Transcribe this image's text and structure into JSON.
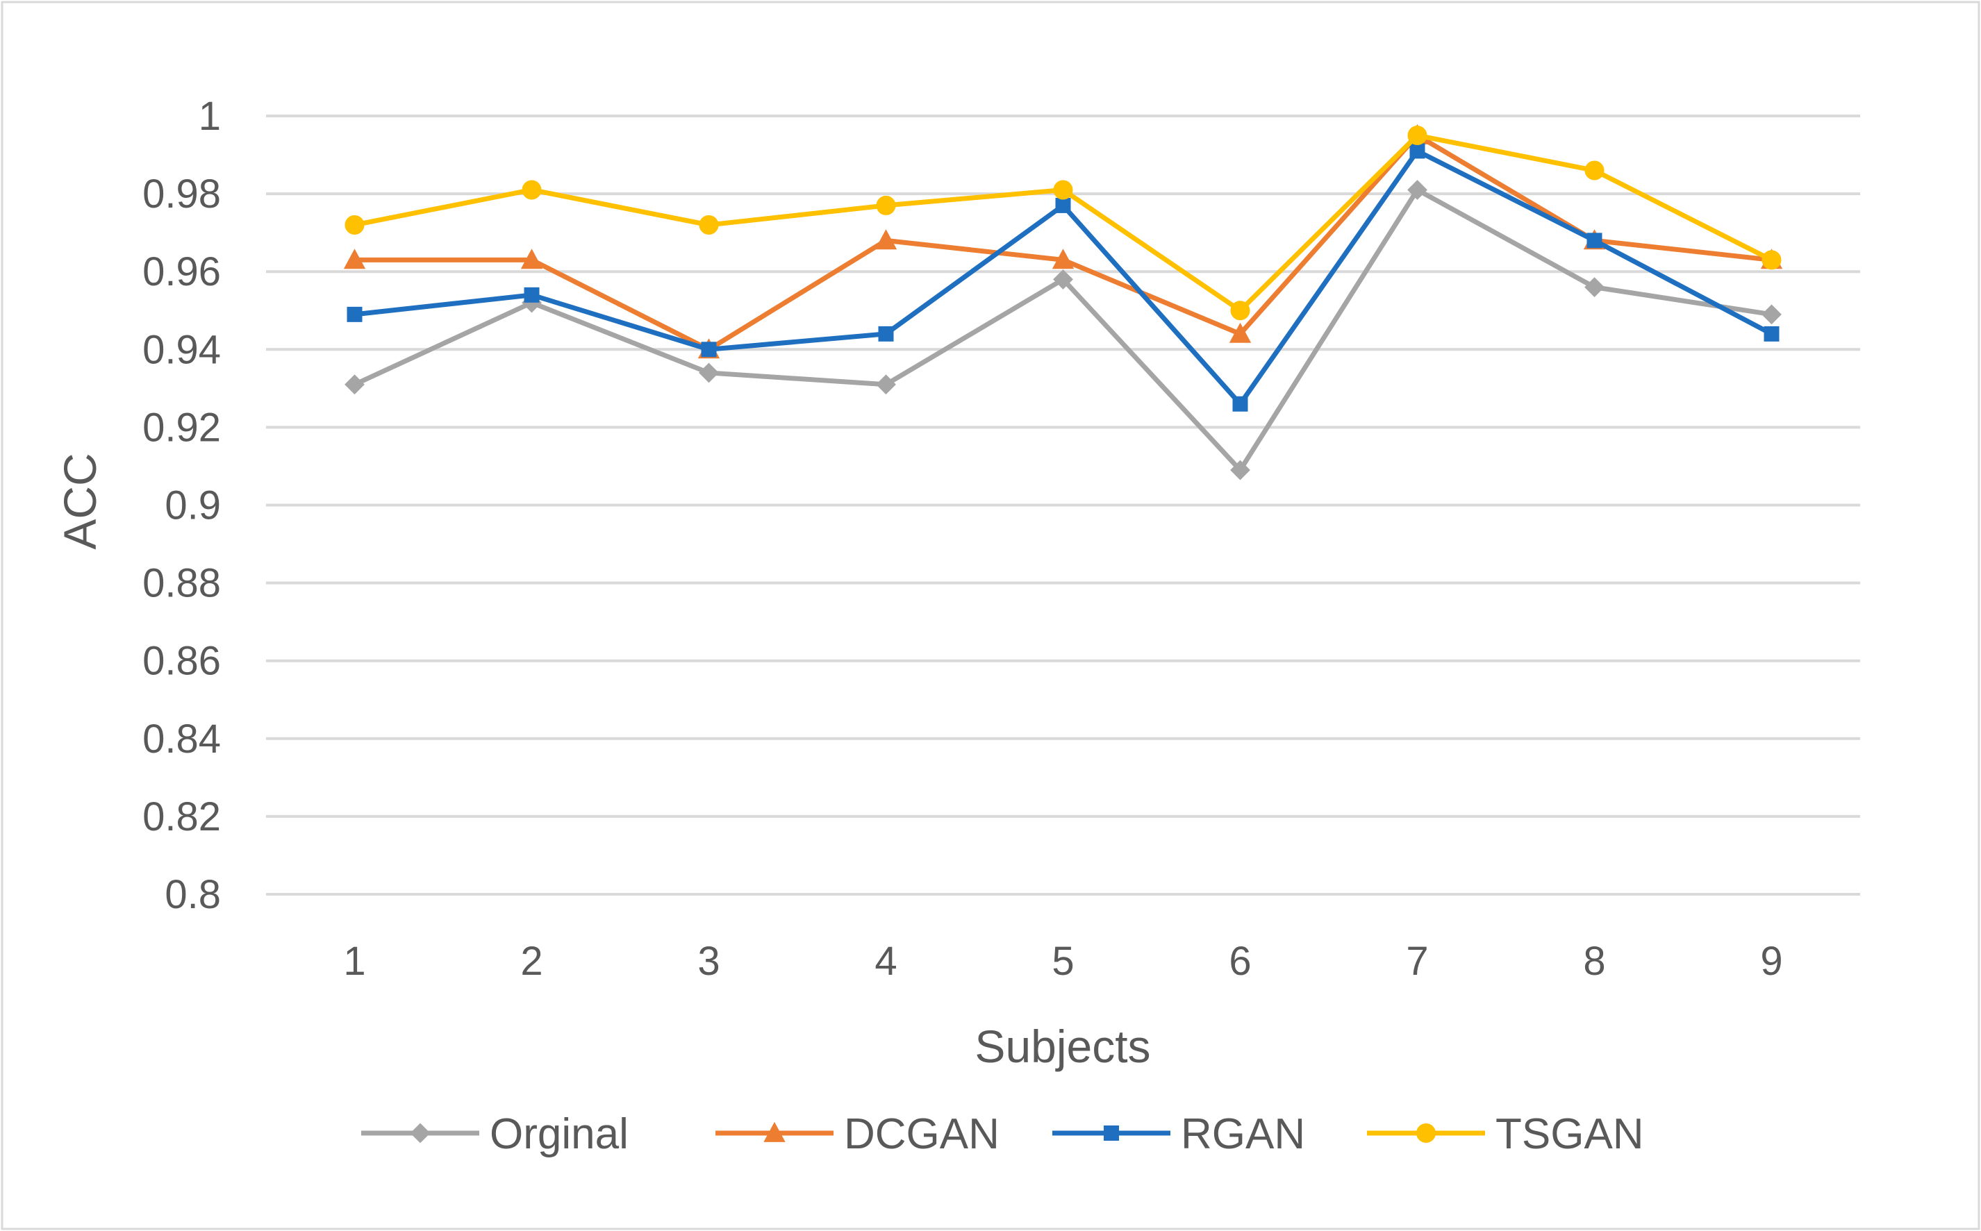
{
  "chart_data": {
    "type": "line",
    "title": "",
    "xlabel": "Subjects",
    "ylabel": "ACC",
    "categories": [
      "1",
      "2",
      "3",
      "4",
      "5",
      "6",
      "7",
      "8",
      "9"
    ],
    "ylim": [
      0.8,
      1.0
    ],
    "yticks": [
      "0.8",
      "0.82",
      "0.84",
      "0.86",
      "0.88",
      "0.9",
      "0.92",
      "0.94",
      "0.96",
      "0.98",
      "1"
    ],
    "grid": true,
    "legend_position": "bottom",
    "series": [
      {
        "name": "Orginal",
        "color": "#A5A5A5",
        "marker": "diamond",
        "values": [
          0.931,
          0.952,
          0.934,
          0.931,
          0.958,
          0.909,
          0.981,
          0.956,
          0.949
        ]
      },
      {
        "name": "DCGAN",
        "color": "#ED7D31",
        "marker": "triangle",
        "values": [
          0.963,
          0.963,
          0.94,
          0.968,
          0.963,
          0.944,
          0.995,
          0.968,
          0.963
        ]
      },
      {
        "name": "RGAN",
        "color": "#1F6FC0",
        "marker": "square",
        "values": [
          0.949,
          0.954,
          0.94,
          0.944,
          0.977,
          0.926,
          0.991,
          0.968,
          0.944
        ]
      },
      {
        "name": "TSGAN",
        "color": "#FFC000",
        "marker": "circle",
        "values": [
          0.972,
          0.981,
          0.972,
          0.977,
          0.981,
          0.95,
          0.995,
          0.986,
          0.963
        ]
      }
    ],
    "gridline_color": "#D9D9D9",
    "frame_color": "#D9D9D9"
  }
}
